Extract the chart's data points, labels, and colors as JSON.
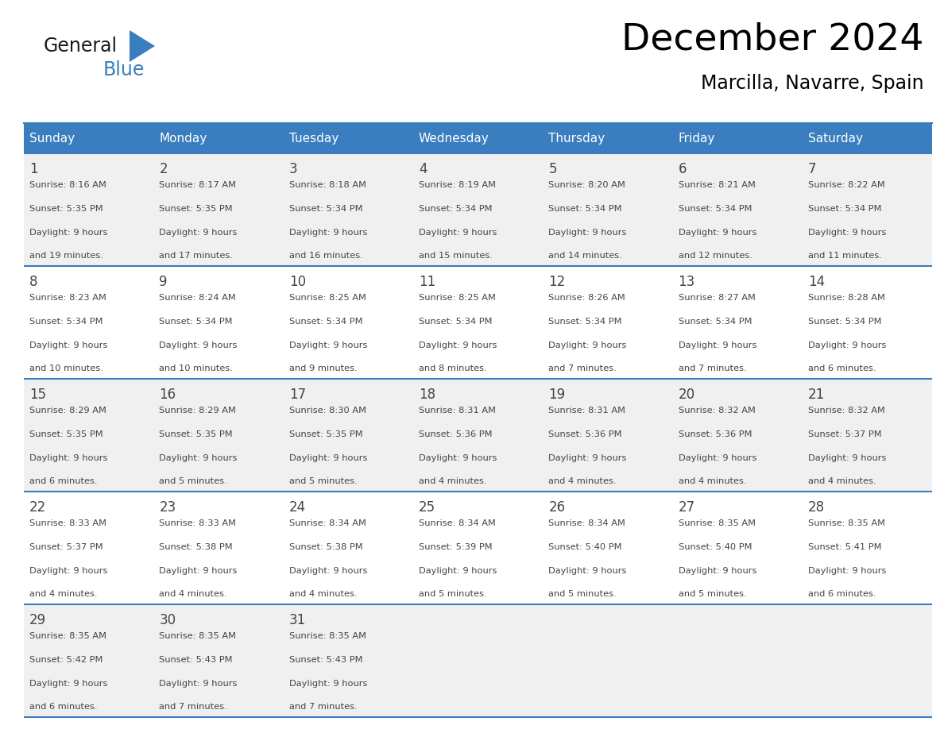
{
  "title": "December 2024",
  "subtitle": "Marcilla, Navarre, Spain",
  "header_bg_color": "#3a7ebf",
  "header_text_color": "#ffffff",
  "row_bg_even": "#f0f0f0",
  "row_bg_odd": "#ffffff",
  "day_headers": [
    "Sunday",
    "Monday",
    "Tuesday",
    "Wednesday",
    "Thursday",
    "Friday",
    "Saturday"
  ],
  "days": [
    {
      "day": 1,
      "col": 0,
      "row": 0,
      "sunrise": "8:16 AM",
      "sunset": "5:35 PM",
      "daylight": "9 hours and 19 minutes."
    },
    {
      "day": 2,
      "col": 1,
      "row": 0,
      "sunrise": "8:17 AM",
      "sunset": "5:35 PM",
      "daylight": "9 hours and 17 minutes."
    },
    {
      "day": 3,
      "col": 2,
      "row": 0,
      "sunrise": "8:18 AM",
      "sunset": "5:34 PM",
      "daylight": "9 hours and 16 minutes."
    },
    {
      "day": 4,
      "col": 3,
      "row": 0,
      "sunrise": "8:19 AM",
      "sunset": "5:34 PM",
      "daylight": "9 hours and 15 minutes."
    },
    {
      "day": 5,
      "col": 4,
      "row": 0,
      "sunrise": "8:20 AM",
      "sunset": "5:34 PM",
      "daylight": "9 hours and 14 minutes."
    },
    {
      "day": 6,
      "col": 5,
      "row": 0,
      "sunrise": "8:21 AM",
      "sunset": "5:34 PM",
      "daylight": "9 hours and 12 minutes."
    },
    {
      "day": 7,
      "col": 6,
      "row": 0,
      "sunrise": "8:22 AM",
      "sunset": "5:34 PM",
      "daylight": "9 hours and 11 minutes."
    },
    {
      "day": 8,
      "col": 0,
      "row": 1,
      "sunrise": "8:23 AM",
      "sunset": "5:34 PM",
      "daylight": "9 hours and 10 minutes."
    },
    {
      "day": 9,
      "col": 1,
      "row": 1,
      "sunrise": "8:24 AM",
      "sunset": "5:34 PM",
      "daylight": "9 hours and 10 minutes."
    },
    {
      "day": 10,
      "col": 2,
      "row": 1,
      "sunrise": "8:25 AM",
      "sunset": "5:34 PM",
      "daylight": "9 hours and 9 minutes."
    },
    {
      "day": 11,
      "col": 3,
      "row": 1,
      "sunrise": "8:25 AM",
      "sunset": "5:34 PM",
      "daylight": "9 hours and 8 minutes."
    },
    {
      "day": 12,
      "col": 4,
      "row": 1,
      "sunrise": "8:26 AM",
      "sunset": "5:34 PM",
      "daylight": "9 hours and 7 minutes."
    },
    {
      "day": 13,
      "col": 5,
      "row": 1,
      "sunrise": "8:27 AM",
      "sunset": "5:34 PM",
      "daylight": "9 hours and 7 minutes."
    },
    {
      "day": 14,
      "col": 6,
      "row": 1,
      "sunrise": "8:28 AM",
      "sunset": "5:34 PM",
      "daylight": "9 hours and 6 minutes."
    },
    {
      "day": 15,
      "col": 0,
      "row": 2,
      "sunrise": "8:29 AM",
      "sunset": "5:35 PM",
      "daylight": "9 hours and 6 minutes."
    },
    {
      "day": 16,
      "col": 1,
      "row": 2,
      "sunrise": "8:29 AM",
      "sunset": "5:35 PM",
      "daylight": "9 hours and 5 minutes."
    },
    {
      "day": 17,
      "col": 2,
      "row": 2,
      "sunrise": "8:30 AM",
      "sunset": "5:35 PM",
      "daylight": "9 hours and 5 minutes."
    },
    {
      "day": 18,
      "col": 3,
      "row": 2,
      "sunrise": "8:31 AM",
      "sunset": "5:36 PM",
      "daylight": "9 hours and 4 minutes."
    },
    {
      "day": 19,
      "col": 4,
      "row": 2,
      "sunrise": "8:31 AM",
      "sunset": "5:36 PM",
      "daylight": "9 hours and 4 minutes."
    },
    {
      "day": 20,
      "col": 5,
      "row": 2,
      "sunrise": "8:32 AM",
      "sunset": "5:36 PM",
      "daylight": "9 hours and 4 minutes."
    },
    {
      "day": 21,
      "col": 6,
      "row": 2,
      "sunrise": "8:32 AM",
      "sunset": "5:37 PM",
      "daylight": "9 hours and 4 minutes."
    },
    {
      "day": 22,
      "col": 0,
      "row": 3,
      "sunrise": "8:33 AM",
      "sunset": "5:37 PM",
      "daylight": "9 hours and 4 minutes."
    },
    {
      "day": 23,
      "col": 1,
      "row": 3,
      "sunrise": "8:33 AM",
      "sunset": "5:38 PM",
      "daylight": "9 hours and 4 minutes."
    },
    {
      "day": 24,
      "col": 2,
      "row": 3,
      "sunrise": "8:34 AM",
      "sunset": "5:38 PM",
      "daylight": "9 hours and 4 minutes."
    },
    {
      "day": 25,
      "col": 3,
      "row": 3,
      "sunrise": "8:34 AM",
      "sunset": "5:39 PM",
      "daylight": "9 hours and 5 minutes."
    },
    {
      "day": 26,
      "col": 4,
      "row": 3,
      "sunrise": "8:34 AM",
      "sunset": "5:40 PM",
      "daylight": "9 hours and 5 minutes."
    },
    {
      "day": 27,
      "col": 5,
      "row": 3,
      "sunrise": "8:35 AM",
      "sunset": "5:40 PM",
      "daylight": "9 hours and 5 minutes."
    },
    {
      "day": 28,
      "col": 6,
      "row": 3,
      "sunrise": "8:35 AM",
      "sunset": "5:41 PM",
      "daylight": "9 hours and 6 minutes."
    },
    {
      "day": 29,
      "col": 0,
      "row": 4,
      "sunrise": "8:35 AM",
      "sunset": "5:42 PM",
      "daylight": "9 hours and 6 minutes."
    },
    {
      "day": 30,
      "col": 1,
      "row": 4,
      "sunrise": "8:35 AM",
      "sunset": "5:43 PM",
      "daylight": "9 hours and 7 minutes."
    },
    {
      "day": 31,
      "col": 2,
      "row": 4,
      "sunrise": "8:35 AM",
      "sunset": "5:43 PM",
      "daylight": "9 hours and 7 minutes."
    }
  ],
  "logo_general_color": "#1a1a1a",
  "logo_blue_color": "#3a7ebf",
  "grid_line_color": "#3a7ebf",
  "cell_text_color": "#444444",
  "num_weeks": 5,
  "fig_width": 11.88,
  "fig_height": 9.18,
  "dpi": 100
}
